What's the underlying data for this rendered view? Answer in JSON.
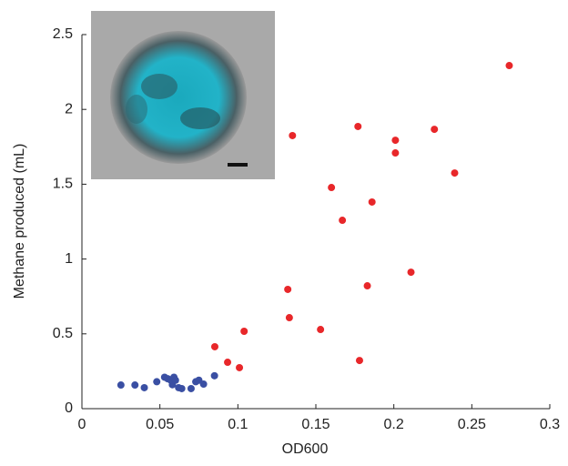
{
  "chart_data": {
    "type": "scatter",
    "x_label": "OD600",
    "y_label": "Methane produced (mL)",
    "xlim": [
      0,
      0.3
    ],
    "xticks": [
      0,
      0.05,
      0.1,
      0.15,
      0.2,
      0.25,
      0.3
    ],
    "ylim": [
      0,
      2.5
    ],
    "yticks": [
      0,
      0.5,
      1,
      1.5,
      2,
      2.5
    ],
    "series": [
      {
        "color": "#3a4fa3",
        "x": [
          0.025,
          0.034,
          0.04,
          0.048,
          0.053,
          0.055,
          0.057,
          0.058,
          0.059,
          0.06,
          0.062,
          0.064,
          0.07,
          0.073,
          0.075,
          0.078,
          0.085
        ],
        "values": [
          0.158,
          0.158,
          0.14,
          0.18,
          0.21,
          0.2,
          0.19,
          0.16,
          0.21,
          0.19,
          0.14,
          0.134,
          0.134,
          0.18,
          0.19,
          0.164,
          0.22
        ]
      },
      {
        "color": "#e8272a",
        "x": [
          0.0852,
          0.0934,
          0.101,
          0.104,
          0.132,
          0.133,
          0.135,
          0.153,
          0.16,
          0.167,
          0.177,
          0.178,
          0.183,
          0.186,
          0.201,
          0.201,
          0.211,
          0.226,
          0.239,
          0.274
        ],
        "values": [
          0.414,
          0.31,
          0.274,
          0.517,
          0.797,
          0.608,
          1.825,
          0.529,
          1.478,
          1.259,
          1.886,
          0.322,
          0.821,
          1.381,
          1.794,
          1.709,
          0.912,
          1.867,
          1.575,
          2.293
        ]
      }
    ]
  }
}
